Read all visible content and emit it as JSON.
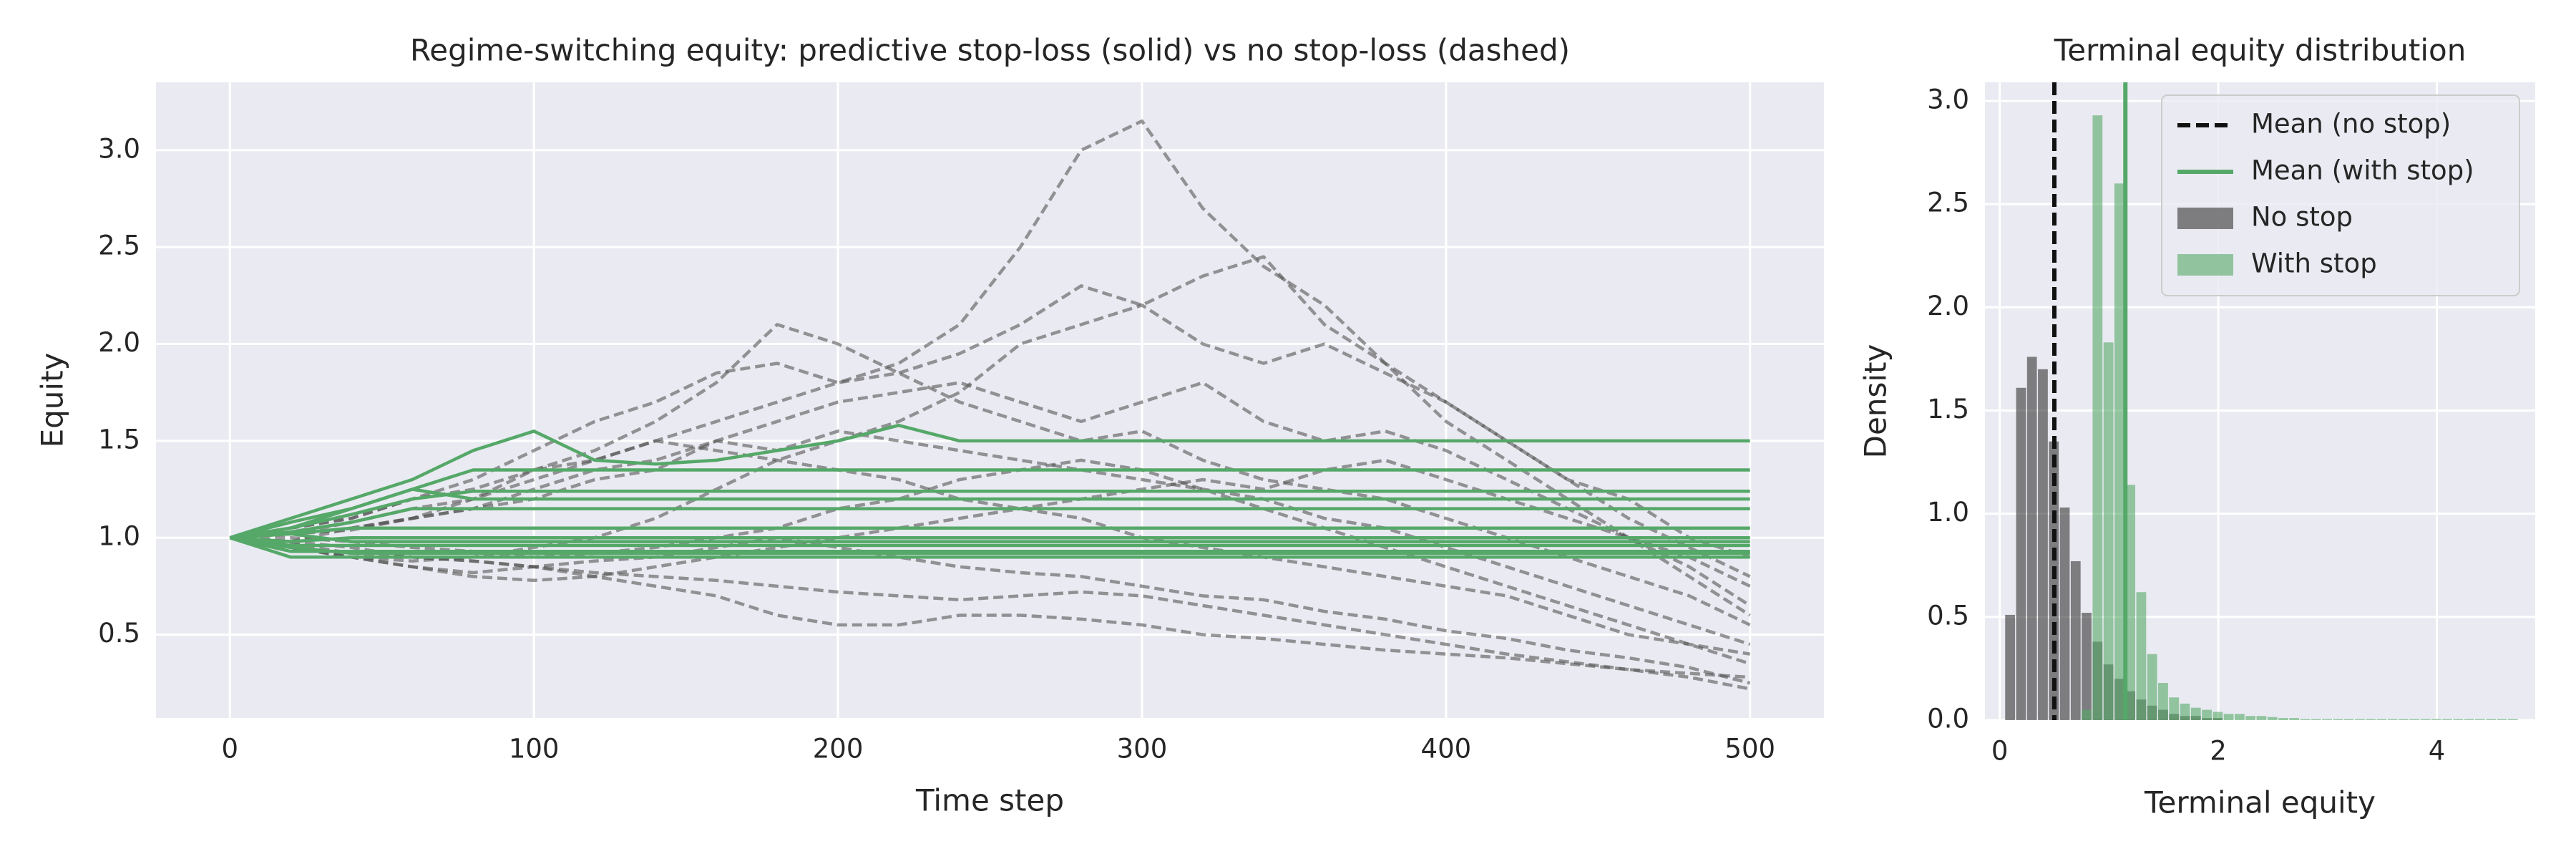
{
  "chart_data": [
    {
      "type": "line",
      "title": "Regime-switching equity: predictive stop-loss (solid) vs no stop-loss (dashed)",
      "xlabel": "Time step",
      "ylabel": "Equity",
      "xlim": [
        -24.3,
        524.3
      ],
      "ylim": [
        0.07,
        3.35
      ],
      "xticks": [
        0,
        100,
        200,
        300,
        400,
        500
      ],
      "yticks": [
        0.5,
        {
          "value": 1.0,
          "label": "1.0"
        },
        1.5,
        {
          "value": 2.0,
          "label": "2.0"
        },
        2.5,
        {
          "value": 3.0,
          "label": "3.0"
        }
      ],
      "grid": true,
      "background": "#eaeaf2",
      "x": [
        0,
        20,
        40,
        60,
        80,
        100,
        120,
        140,
        160,
        180,
        200,
        220,
        240,
        260,
        280,
        300,
        320,
        340,
        360,
        380,
        400,
        420,
        440,
        460,
        480,
        500
      ],
      "series": [
        {
          "color": "#555555",
          "linestyle": "dashed",
          "values": [
            1,
            1.05,
            1.1,
            1.2,
            1.3,
            1.45,
            1.6,
            1.7,
            1.85,
            1.9,
            1.8,
            1.9,
            2.1,
            2.5,
            3.0,
            3.15,
            2.7,
            2.4,
            2.2,
            1.9,
            1.6,
            1.4,
            1.2,
            1.0,
            0.8,
            0.6
          ]
        },
        {
          "color": "#555555",
          "linestyle": "dashed",
          "values": [
            1,
            1.02,
            1.08,
            1.15,
            1.2,
            1.3,
            1.4,
            1.5,
            1.6,
            1.7,
            1.8,
            1.85,
            1.95,
            2.1,
            2.3,
            2.2,
            2.35,
            2.45,
            2.1,
            1.9,
            1.7,
            1.5,
            1.3,
            1.1,
            0.95,
            0.8
          ]
        },
        {
          "color": "#555555",
          "linestyle": "dashed",
          "values": [
            1,
            0.98,
            1.05,
            1.1,
            1.2,
            1.35,
            1.45,
            1.6,
            1.8,
            2.1,
            2.0,
            1.85,
            1.7,
            1.6,
            1.5,
            1.55,
            1.4,
            1.3,
            1.25,
            1.2,
            1.1,
            1.0,
            0.9,
            0.8,
            0.7,
            0.55
          ]
        },
        {
          "color": "#555555",
          "linestyle": "dashed",
          "values": [
            1,
            0.95,
            0.9,
            0.88,
            0.9,
            0.95,
            1.0,
            1.1,
            1.25,
            1.4,
            1.5,
            1.6,
            1.75,
            2.0,
            2.1,
            2.2,
            2.0,
            1.9,
            2.0,
            1.85,
            1.7,
            1.5,
            1.3,
            1.2,
            1.0,
            0.9
          ]
        },
        {
          "color": "#555555",
          "linestyle": "dashed",
          "values": [
            1,
            0.95,
            0.9,
            0.85,
            0.82,
            0.85,
            0.8,
            0.75,
            0.7,
            0.6,
            0.55,
            0.55,
            0.6,
            0.6,
            0.58,
            0.55,
            0.5,
            0.48,
            0.45,
            0.42,
            0.4,
            0.38,
            0.35,
            0.32,
            0.3,
            0.28
          ]
        },
        {
          "color": "#555555",
          "linestyle": "dashed",
          "values": [
            1,
            0.97,
            0.92,
            0.9,
            0.88,
            0.85,
            0.88,
            0.9,
            0.95,
            1.0,
            0.95,
            0.9,
            0.85,
            0.82,
            0.8,
            0.75,
            0.7,
            0.68,
            0.62,
            0.58,
            0.52,
            0.48,
            0.42,
            0.38,
            0.33,
            0.25
          ]
        },
        {
          "color": "#555555",
          "linestyle": "dashed",
          "values": [
            1,
            1.02,
            1.05,
            1.1,
            1.15,
            1.2,
            1.3,
            1.35,
            1.5,
            1.45,
            1.55,
            1.5,
            1.45,
            1.4,
            1.35,
            1.3,
            1.25,
            1.2,
            1.1,
            1.05,
            0.95,
            0.85,
            0.75,
            0.65,
            0.55,
            0.45
          ]
        },
        {
          "color": "#555555",
          "linestyle": "dashed",
          "values": [
            1,
            1.05,
            1.1,
            1.2,
            1.25,
            1.35,
            1.4,
            1.5,
            1.45,
            1.4,
            1.35,
            1.3,
            1.2,
            1.15,
            1.1,
            1.0,
            0.95,
            0.9,
            0.85,
            0.8,
            0.75,
            0.7,
            0.6,
            0.5,
            0.45,
            0.4
          ]
        },
        {
          "color": "#555555",
          "linestyle": "dashed",
          "values": [
            1,
            0.95,
            0.9,
            0.85,
            0.8,
            0.78,
            0.8,
            0.85,
            0.9,
            0.95,
            1.0,
            1.05,
            1.1,
            1.15,
            1.2,
            1.25,
            1.3,
            1.25,
            1.35,
            1.4,
            1.3,
            1.2,
            1.1,
            1.0,
            0.9,
            0.75
          ]
        },
        {
          "color": "#555555",
          "linestyle": "dashed",
          "values": [
            1,
            1.0,
            0.98,
            0.95,
            0.93,
            0.9,
            0.92,
            0.95,
            1.0,
            1.05,
            1.15,
            1.2,
            1.3,
            1.35,
            1.4,
            1.35,
            1.25,
            1.15,
            1.05,
            0.95,
            0.85,
            0.75,
            0.65,
            0.55,
            0.45,
            0.35
          ]
        },
        {
          "color": "#555555",
          "linestyle": "dashed",
          "values": [
            1,
            1.02,
            1.04,
            1.1,
            1.15,
            1.25,
            1.35,
            1.4,
            1.5,
            1.6,
            1.7,
            1.75,
            1.8,
            1.7,
            1.6,
            1.7,
            1.8,
            1.6,
            1.5,
            1.55,
            1.45,
            1.3,
            1.15,
            1.0,
            0.85,
            0.65
          ]
        },
        {
          "color": "#555555",
          "linestyle": "dashed",
          "values": [
            1,
            0.98,
            0.95,
            0.9,
            0.88,
            0.85,
            0.82,
            0.8,
            0.78,
            0.75,
            0.72,
            0.7,
            0.68,
            0.7,
            0.72,
            0.7,
            0.65,
            0.6,
            0.55,
            0.5,
            0.45,
            0.4,
            0.36,
            0.32,
            0.28,
            0.22
          ]
        },
        {
          "color": "#55a868",
          "linestyle": "solid",
          "values": [
            1,
            1.1,
            1.2,
            1.3,
            1.45,
            1.55,
            1.4,
            1.38,
            1.4,
            1.45,
            1.5,
            1.58,
            1.5,
            1.5,
            1.5,
            1.5,
            1.5,
            1.5,
            1.5,
            1.5,
            1.5,
            1.5,
            1.5,
            1.5,
            1.5,
            1.5
          ]
        },
        {
          "color": "#55a868",
          "linestyle": "solid",
          "values": [
            1,
            1.08,
            1.15,
            1.25,
            1.35,
            1.35,
            1.35,
            1.35,
            1.35,
            1.35,
            1.35,
            1.35,
            1.35,
            1.35,
            1.35,
            1.35,
            1.35,
            1.35,
            1.35,
            1.35,
            1.35,
            1.35,
            1.35,
            1.35,
            1.35,
            1.35
          ]
        },
        {
          "color": "#55a868",
          "linestyle": "solid",
          "values": [
            1,
            1.05,
            1.12,
            1.2,
            1.24,
            1.24,
            1.24,
            1.24,
            1.24,
            1.24,
            1.24,
            1.24,
            1.24,
            1.24,
            1.24,
            1.24,
            1.24,
            1.24,
            1.24,
            1.24,
            1.24,
            1.24,
            1.24,
            1.24,
            1.24,
            1.24
          ]
        },
        {
          "color": "#55a868",
          "linestyle": "solid",
          "values": [
            1,
            1.05,
            1.15,
            1.25,
            1.2,
            1.2,
            1.2,
            1.2,
            1.2,
            1.2,
            1.2,
            1.2,
            1.2,
            1.2,
            1.2,
            1.2,
            1.2,
            1.2,
            1.2,
            1.2,
            1.2,
            1.2,
            1.2,
            1.2,
            1.2,
            1.2
          ]
        },
        {
          "color": "#55a868",
          "linestyle": "solid",
          "values": [
            1,
            1.03,
            1.08,
            1.15,
            1.15,
            1.15,
            1.15,
            1.15,
            1.15,
            1.15,
            1.15,
            1.15,
            1.15,
            1.15,
            1.15,
            1.15,
            1.15,
            1.15,
            1.15,
            1.15,
            1.15,
            1.15,
            1.15,
            1.15,
            1.15,
            1.15
          ]
        },
        {
          "color": "#55a868",
          "linestyle": "solid",
          "values": [
            1,
            1.02,
            1.05,
            1.05,
            1.05,
            1.05,
            1.05,
            1.05,
            1.05,
            1.05,
            1.05,
            1.05,
            1.05,
            1.05,
            1.05,
            1.05,
            1.05,
            1.05,
            1.05,
            1.05,
            1.05,
            1.05,
            1.05,
            1.05,
            1.05,
            1.05
          ]
        },
        {
          "color": "#55a868",
          "linestyle": "solid",
          "values": [
            1,
            0.98,
            1.0,
            1.0,
            1.0,
            1.0,
            1.0,
            1.0,
            1.0,
            1.0,
            1.0,
            1.0,
            1.0,
            1.0,
            1.0,
            1.0,
            1.0,
            1.0,
            1.0,
            1.0,
            1.0,
            1.0,
            1.0,
            1.0,
            1.0,
            1.0
          ]
        },
        {
          "color": "#55a868",
          "linestyle": "solid",
          "values": [
            1,
            0.96,
            0.96,
            0.96,
            0.96,
            0.96,
            0.96,
            0.96,
            0.96,
            0.96,
            0.96,
            0.96,
            0.96,
            0.96,
            0.96,
            0.96,
            0.96,
            0.96,
            0.96,
            0.96,
            0.96,
            0.96,
            0.96,
            0.96,
            0.96,
            0.96
          ]
        },
        {
          "color": "#55a868",
          "linestyle": "solid",
          "values": [
            1,
            0.93,
            0.93,
            0.93,
            0.93,
            0.93,
            0.93,
            0.93,
            0.93,
            0.93,
            0.93,
            0.93,
            0.93,
            0.93,
            0.93,
            0.93,
            0.93,
            0.93,
            0.93,
            0.93,
            0.93,
            0.93,
            0.93,
            0.93,
            0.93,
            0.93
          ]
        },
        {
          "color": "#55a868",
          "linestyle": "solid",
          "values": [
            1,
            0.9,
            0.9,
            0.9,
            0.9,
            0.9,
            0.9,
            0.9,
            0.9,
            0.9,
            0.9,
            0.9,
            0.9,
            0.9,
            0.9,
            0.9,
            0.9,
            0.9,
            0.9,
            0.9,
            0.9,
            0.9,
            0.9,
            0.9,
            0.9,
            0.9
          ]
        },
        {
          "color": "#55a868",
          "linestyle": "solid",
          "values": [
            1,
            0.95,
            0.92,
            0.92,
            0.92,
            0.92,
            0.92,
            0.92,
            0.92,
            0.92,
            0.92,
            0.92,
            0.92,
            0.92,
            0.92,
            0.92,
            0.92,
            0.92,
            0.92,
            0.92,
            0.92,
            0.92,
            0.92,
            0.92,
            0.92,
            0.92
          ]
        },
        {
          "color": "#55a868",
          "linestyle": "solid",
          "values": [
            1,
            1.02,
            0.98,
            0.98,
            0.98,
            0.98,
            0.98,
            0.98,
            0.98,
            0.98,
            0.98,
            0.98,
            0.98,
            0.98,
            0.98,
            0.98,
            0.98,
            0.98,
            0.98,
            0.98,
            0.98,
            0.98,
            0.98,
            0.98,
            0.98,
            0.98
          ]
        }
      ]
    },
    {
      "type": "histogram",
      "title": "Terminal equity distribution",
      "xlabel": "Terminal equity",
      "ylabel": "Density",
      "xlim": [
        -0.135,
        4.9
      ],
      "ylim": [
        0,
        3.09
      ],
      "xticks": [
        0,
        2,
        4
      ],
      "yticks": [
        {
          "value": 0,
          "label": "0.0"
        },
        0.5,
        {
          "value": 1,
          "label": "1.0"
        },
        1.5,
        {
          "value": 2,
          "label": "2.0"
        },
        2.5,
        {
          "value": 3,
          "label": "3.0"
        }
      ],
      "grid": true,
      "background": "#eaeaf2",
      "legend": "upper right",
      "bins": [
        0.05,
        0.15,
        0.25,
        0.35,
        0.45,
        0.55,
        0.65,
        0.75,
        0.85,
        0.95,
        1.05,
        1.15,
        1.25,
        1.35,
        1.45,
        1.55,
        1.65,
        1.75,
        1.85,
        1.95,
        2.05,
        2.15,
        2.25,
        2.35,
        2.45,
        2.55,
        2.65,
        2.75,
        2.85,
        2.95,
        3.05,
        3.15,
        3.25,
        3.35,
        3.45,
        3.55,
        3.65,
        3.75,
        3.85,
        3.95,
        4.05,
        4.15,
        4.25,
        4.35,
        4.45,
        4.55,
        4.65,
        4.75
      ],
      "series": [
        {
          "name": "No stop",
          "color": "#333333",
          "values": [
            0.51,
            1.61,
            1.76,
            1.7,
            1.35,
            1.03,
            0.77,
            0.52,
            0.38,
            0.27,
            0.2,
            0.14,
            0.1,
            0.07,
            0.05,
            0.03,
            0.02,
            0.02,
            0.01,
            0.01,
            0,
            0,
            0,
            0,
            0,
            0,
            0,
            0,
            0,
            0,
            0,
            0,
            0,
            0,
            0,
            0,
            0,
            0,
            0,
            0,
            0,
            0,
            0,
            0,
            0,
            0,
            0
          ]
        },
        {
          "name": "With stop",
          "color": "#55a868",
          "values": [
            0,
            0,
            0,
            0,
            0,
            0,
            0,
            0.05,
            2.93,
            1.83,
            2.6,
            1.14,
            0.62,
            0.32,
            0.18,
            0.11,
            0.08,
            0.06,
            0.05,
            0.04,
            0.03,
            0.03,
            0.02,
            0.02,
            0.015,
            0.01,
            0.01,
            0.005,
            0.005,
            0.005,
            0.005,
            0.005,
            0.005,
            0.005,
            0.005,
            0.005,
            0.005,
            0.005,
            0.005,
            0.005,
            0.005,
            0.005,
            0.005,
            0.005,
            0.005,
            0.005,
            0.005
          ]
        }
      ],
      "vlines": [
        {
          "name": "Mean (no stop)",
          "value": 0.5,
          "color": "#111111",
          "linestyle": "dashed"
        },
        {
          "name": "Mean (with stop)",
          "value": 1.15,
          "color": "#55a868",
          "linestyle": "solid"
        }
      ]
    }
  ]
}
